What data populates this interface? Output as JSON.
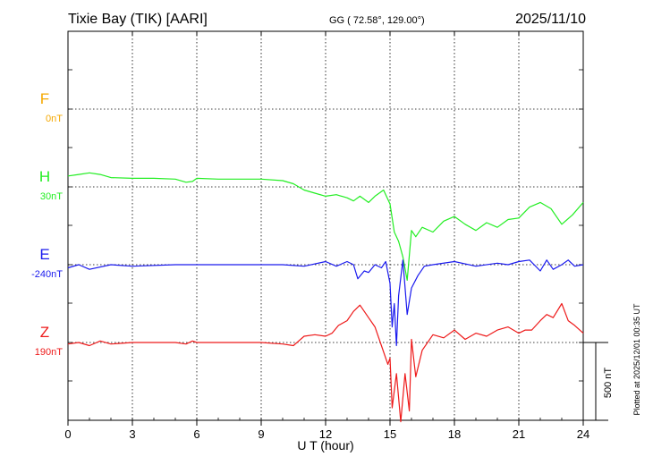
{
  "header": {
    "station": "Tixie Bay (TIK)  [AARI]",
    "coords": "GG ( 72.58°, 129.00°)",
    "date": "2025/11/10"
  },
  "footer_note": "Plotted at 2025/12/01 00:35 UT",
  "chart_data": {
    "type": "line",
    "title": "Tixie Bay (TIK)  [AARI]",
    "xlabel": "U T (hour)",
    "ylabel": "",
    "xlim": [
      0,
      24
    ],
    "x_ticks": [
      0,
      3,
      6,
      9,
      12,
      15,
      18,
      21,
      24
    ],
    "x_tick_labels": [
      "0",
      "3",
      "6",
      "9",
      "12",
      "15",
      "18",
      "21",
      "24"
    ],
    "grid": true,
    "scale_bar": {
      "label": "500 nT",
      "value_nT": 500
    },
    "series": [
      {
        "name": "F",
        "baseline_label": "0nT",
        "color": "#f5a800",
        "baseline_nT": 0,
        "x": [],
        "values": []
      },
      {
        "name": "H",
        "baseline_label": "30nT",
        "color": "#22ee22",
        "baseline_nT": 30,
        "x": [
          0,
          0.5,
          1,
          1.5,
          2,
          3,
          4,
          5,
          5.5,
          5.8,
          6,
          7,
          8,
          9,
          10,
          10.5,
          11,
          11.5,
          12,
          12.5,
          13,
          13.3,
          13.6,
          14,
          14.3,
          14.7,
          15,
          15.2,
          15.4,
          15.6,
          15.8,
          16,
          16.2,
          16.5,
          17,
          17.5,
          18,
          18.5,
          19,
          19.5,
          20,
          20.5,
          21,
          21.5,
          22,
          22.5,
          23,
          23.5,
          24
        ],
        "values": [
          70,
          80,
          90,
          80,
          60,
          55,
          55,
          50,
          30,
          35,
          55,
          50,
          50,
          50,
          40,
          20,
          -20,
          -40,
          -60,
          -50,
          -70,
          -90,
          -60,
          -100,
          -60,
          -20,
          -110,
          -290,
          -350,
          -450,
          -600,
          -280,
          -320,
          -260,
          -290,
          -220,
          -190,
          -240,
          -280,
          -230,
          -260,
          -210,
          -200,
          -130,
          -100,
          -140,
          -240,
          -180,
          -100
        ]
      },
      {
        "name": "E",
        "baseline_label": "-240nT",
        "color": "#1a1aee",
        "baseline_nT": -240,
        "x": [
          0,
          0.5,
          1,
          2,
          3,
          5,
          6,
          8,
          10,
          11,
          12,
          12.5,
          13,
          13.3,
          13.5,
          13.8,
          14,
          14.3,
          14.6,
          14.8,
          15,
          15.1,
          15.2,
          15.3,
          15.4,
          15.6,
          15.8,
          16,
          16.3,
          16.6,
          17,
          18,
          19,
          20,
          20.5,
          21,
          21.5,
          22,
          22.3,
          22.6,
          23,
          23.3,
          23.6,
          24
        ],
        "values": [
          -20,
          0,
          -30,
          0,
          -10,
          0,
          0,
          0,
          0,
          -10,
          20,
          -10,
          20,
          0,
          -90,
          -40,
          -50,
          0,
          -20,
          20,
          -120,
          -400,
          -250,
          -520,
          -200,
          30,
          -320,
          -150,
          -70,
          -10,
          0,
          20,
          -10,
          10,
          0,
          20,
          30,
          -40,
          30,
          -30,
          0,
          30,
          -10,
          0
        ]
      },
      {
        "name": "Z",
        "baseline_label": "190nT",
        "color": "#ee1a1a",
        "baseline_nT": 190,
        "x": [
          0,
          0.5,
          1,
          1.5,
          2,
          3,
          4,
          5,
          5.5,
          5.8,
          6,
          7,
          8,
          9,
          10,
          10.5,
          11,
          11.5,
          12,
          12.3,
          12.6,
          13,
          13.3,
          13.6,
          14,
          14.3,
          14.6,
          14.9,
          15,
          15.1,
          15.3,
          15.5,
          15.7,
          15.9,
          16,
          16.2,
          16.5,
          17,
          17.5,
          18,
          18.5,
          19,
          19.5,
          20,
          20.5,
          21,
          21.3,
          21.6,
          22,
          22.3,
          22.6,
          23,
          23.3,
          23.6,
          24
        ],
        "values": [
          -10,
          0,
          -20,
          10,
          -10,
          0,
          0,
          0,
          -10,
          10,
          0,
          0,
          0,
          0,
          -10,
          -20,
          40,
          50,
          40,
          60,
          110,
          140,
          200,
          240,
          160,
          100,
          -20,
          -140,
          -100,
          -420,
          -200,
          -510,
          -200,
          -440,
          20,
          -220,
          -50,
          50,
          30,
          80,
          20,
          60,
          40,
          80,
          100,
          60,
          80,
          80,
          140,
          180,
          160,
          250,
          140,
          110,
          60
        ]
      }
    ]
  }
}
